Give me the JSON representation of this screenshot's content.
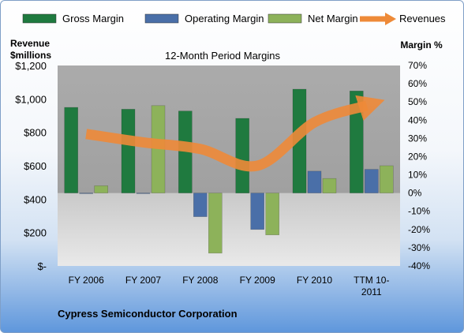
{
  "chart_data": {
    "type": "bar",
    "title": "12-Month Period Margins",
    "categories": [
      "FY 2006",
      "FY 2007",
      "FY 2008",
      "FY 2009",
      "FY 2010",
      "TTM 10-2011"
    ],
    "category_lines": [
      [
        "FY 2006"
      ],
      [
        "FY 2007"
      ],
      [
        "FY 2008"
      ],
      [
        "FY 2009"
      ],
      [
        "FY 2010"
      ],
      [
        "TTM 10-",
        "2011"
      ]
    ],
    "series": [
      {
        "name": "Gross Margin",
        "axis": "right",
        "color": "#1f7a3f",
        "values": [
          47,
          46,
          45,
          41,
          57,
          56
        ]
      },
      {
        "name": "Operating Margin",
        "axis": "right",
        "color": "#4a6fa8",
        "values": [
          0,
          0,
          -13,
          -20,
          12,
          13
        ]
      },
      {
        "name": "Net Margin",
        "axis": "right",
        "color": "#8db25a",
        "values": [
          4,
          48,
          -33,
          -23,
          8,
          15
        ]
      }
    ],
    "line_series": {
      "name": "Revenues",
      "axis": "left",
      "color": "#ee8a38",
      "values": [
        790,
        740,
        700,
        600,
        860,
        960
      ]
    },
    "ylabel_left": [
      "Revenue",
      "$millions"
    ],
    "ylabel_right": "Margin %",
    "left_axis": {
      "min": 0,
      "max": 1200,
      "step": 200,
      "tick_labels": [
        "$-",
        "$200",
        "$400",
        "$600",
        "$800",
        "$1,000",
        "$1,200"
      ]
    },
    "right_axis": {
      "min": -40,
      "max": 70,
      "step": 10,
      "tick_labels": [
        "-40%",
        "-30%",
        "-20%",
        "-10%",
        "0%",
        "10%",
        "20%",
        "30%",
        "40%",
        "50%",
        "60%",
        "70%"
      ]
    },
    "legend_position": "top",
    "grid": false,
    "plot_background": "#a6a6a6",
    "footer_note": "Cypress Semiconductor Corporation"
  }
}
